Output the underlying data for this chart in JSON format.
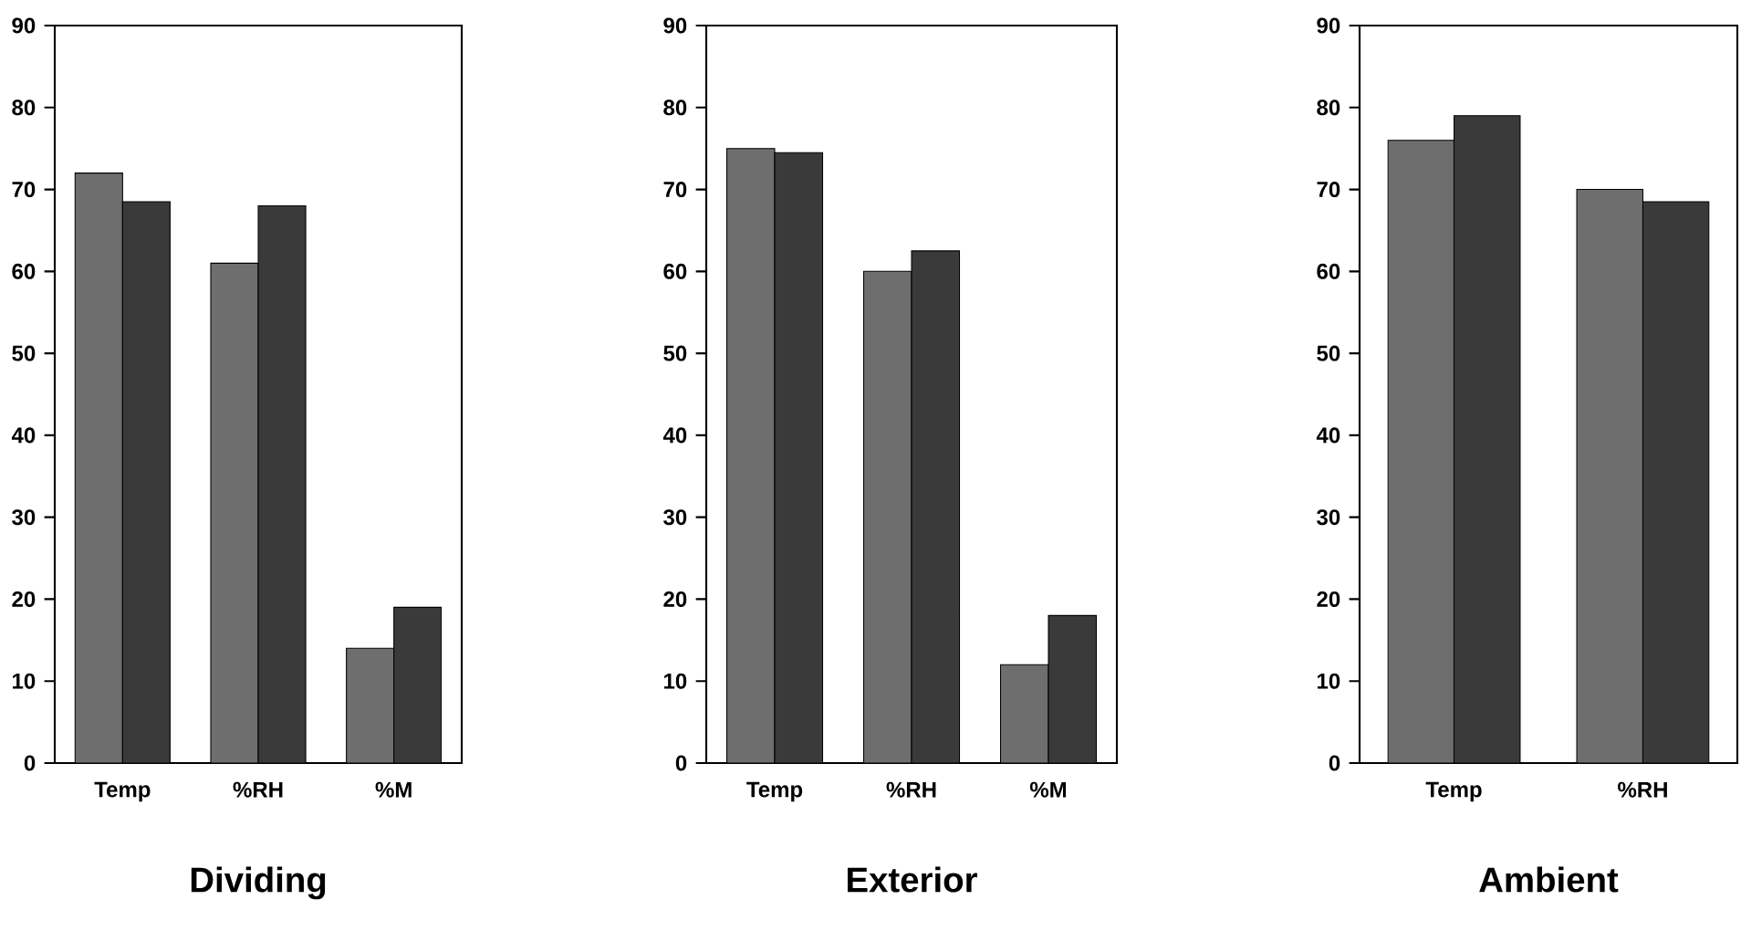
{
  "chart_data": [
    {
      "type": "bar",
      "title": "Dividing",
      "categories": [
        "Temp",
        "%RH",
        "%M"
      ],
      "series": [
        {
          "color": "#6e6e6e",
          "values": [
            72,
            61,
            14
          ]
        },
        {
          "color": "#3a3a3a",
          "values": [
            68.5,
            68,
            19
          ]
        }
      ],
      "ylim": [
        0,
        90
      ],
      "yticks": [
        0,
        10,
        20,
        30,
        40,
        50,
        60,
        70,
        80,
        90
      ]
    },
    {
      "type": "bar",
      "title": "Exterior",
      "categories": [
        "Temp",
        "%RH",
        "%M"
      ],
      "series": [
        {
          "color": "#6e6e6e",
          "values": [
            75,
            60,
            12
          ]
        },
        {
          "color": "#3a3a3a",
          "values": [
            74.5,
            62.5,
            18
          ]
        }
      ],
      "ylim": [
        0,
        90
      ],
      "yticks": [
        0,
        10,
        20,
        30,
        40,
        50,
        60,
        70,
        80,
        90
      ]
    },
    {
      "type": "bar",
      "title": "Ambient",
      "categories": [
        "Temp",
        "%RH"
      ],
      "series": [
        {
          "color": "#6e6e6e",
          "values": [
            76,
            70
          ]
        },
        {
          "color": "#3a3a3a",
          "values": [
            79,
            68.5
          ]
        }
      ],
      "ylim": [
        0,
        90
      ],
      "yticks": [
        0,
        10,
        20,
        30,
        40,
        50,
        60,
        70,
        80,
        90
      ]
    }
  ]
}
